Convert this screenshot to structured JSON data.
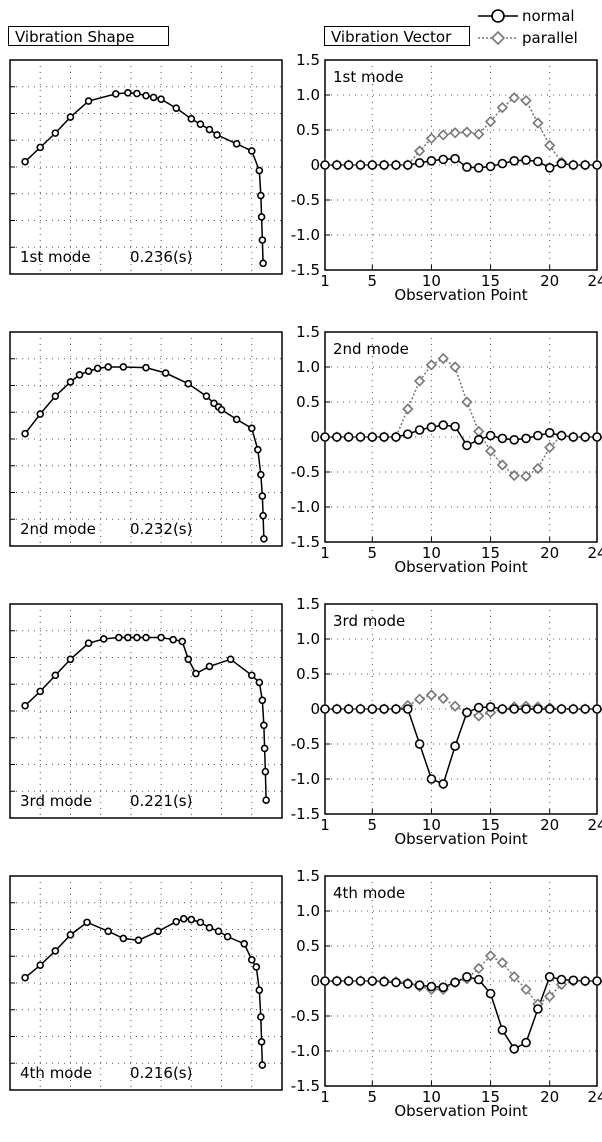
{
  "headers": {
    "shape": "Vibration Shape",
    "vector": "Vibration Vector"
  },
  "legend": {
    "normal": "normal",
    "parallel": "parallel"
  },
  "styles": {
    "normal_color": "#000000",
    "parallel_color": "#777777"
  },
  "chart_data": [
    {
      "type": "line",
      "title": "1st mode",
      "period": "0.236(s)",
      "shape_points": [
        [
          1.0,
          6.15
        ],
        [
          2.0,
          6.55
        ],
        [
          3.0,
          6.95
        ],
        [
          4.0,
          7.4
        ],
        [
          5.2,
          7.85
        ],
        [
          7.0,
          8.05
        ],
        [
          7.8,
          8.08
        ],
        [
          8.4,
          8.06
        ],
        [
          9.0,
          8.0
        ],
        [
          9.5,
          7.95
        ],
        [
          10.0,
          7.9
        ],
        [
          11.0,
          7.65
        ],
        [
          12.0,
          7.35
        ],
        [
          12.6,
          7.2
        ],
        [
          13.2,
          7.05
        ],
        [
          13.7,
          6.9
        ],
        [
          15.0,
          6.65
        ],
        [
          16.0,
          6.45
        ],
        [
          16.5,
          5.9
        ],
        [
          16.6,
          5.2
        ],
        [
          16.65,
          4.6
        ],
        [
          16.7,
          3.95
        ],
        [
          16.75,
          3.3
        ]
      ]
    },
    {
      "type": "line",
      "title": "2nd mode",
      "period": "0.232(s)",
      "shape_points": [
        [
          1.0,
          6.15
        ],
        [
          2.0,
          6.7
        ],
        [
          3.0,
          7.2
        ],
        [
          4.0,
          7.6
        ],
        [
          4.6,
          7.8
        ],
        [
          5.2,
          7.9
        ],
        [
          5.8,
          7.98
        ],
        [
          6.5,
          8.02
        ],
        [
          7.5,
          8.02
        ],
        [
          9.0,
          8.0
        ],
        [
          10.3,
          7.85
        ],
        [
          11.8,
          7.55
        ],
        [
          13.0,
          7.2
        ],
        [
          13.5,
          7.0
        ],
        [
          13.8,
          6.9
        ],
        [
          14.0,
          6.82
        ],
        [
          15.0,
          6.55
        ],
        [
          16.0,
          6.3
        ],
        [
          16.4,
          5.7
        ],
        [
          16.6,
          5.0
        ],
        [
          16.7,
          4.4
        ],
        [
          16.75,
          3.85
        ],
        [
          16.8,
          3.2
        ]
      ]
    },
    {
      "type": "line",
      "title": "3rd mode",
      "period": "0.221(s)",
      "shape_points": [
        [
          1.0,
          6.15
        ],
        [
          2.0,
          6.55
        ],
        [
          3.0,
          7.0
        ],
        [
          4.0,
          7.45
        ],
        [
          5.2,
          7.9
        ],
        [
          6.2,
          8.02
        ],
        [
          7.2,
          8.06
        ],
        [
          7.8,
          8.06
        ],
        [
          8.4,
          8.06
        ],
        [
          9.0,
          8.06
        ],
        [
          10.0,
          8.06
        ],
        [
          10.8,
          8.0
        ],
        [
          11.4,
          7.95
        ],
        [
          11.8,
          7.45
        ],
        [
          12.3,
          7.05
        ],
        [
          13.2,
          7.25
        ],
        [
          14.6,
          7.45
        ],
        [
          16.0,
          7.0
        ],
        [
          16.5,
          6.8
        ],
        [
          16.7,
          6.3
        ],
        [
          16.8,
          5.6
        ],
        [
          16.85,
          4.95
        ],
        [
          16.9,
          4.3
        ],
        [
          16.95,
          3.5
        ]
      ]
    },
    {
      "type": "line",
      "title": "4th mode",
      "period": "0.216(s)",
      "shape_points": [
        [
          1.0,
          6.15
        ],
        [
          2.0,
          6.5
        ],
        [
          3.0,
          6.9
        ],
        [
          4.0,
          7.35
        ],
        [
          5.1,
          7.7
        ],
        [
          6.5,
          7.45
        ],
        [
          7.5,
          7.25
        ],
        [
          8.5,
          7.2
        ],
        [
          9.8,
          7.45
        ],
        [
          11.0,
          7.72
        ],
        [
          11.5,
          7.8
        ],
        [
          12.0,
          7.78
        ],
        [
          12.6,
          7.7
        ],
        [
          13.2,
          7.55
        ],
        [
          13.8,
          7.45
        ],
        [
          14.4,
          7.3
        ],
        [
          15.5,
          7.1
        ],
        [
          16.0,
          6.65
        ],
        [
          16.3,
          6.45
        ],
        [
          16.5,
          5.8
        ],
        [
          16.6,
          5.05
        ],
        [
          16.65,
          4.35
        ],
        [
          16.7,
          3.7
        ]
      ]
    }
  ],
  "vector_charts": [
    {
      "type": "line",
      "title": "1st mode",
      "xlabel": "Observation Point",
      "xlim": [
        1,
        24
      ],
      "ylim": [
        -1.5,
        1.5
      ],
      "x_ticks": [
        "1",
        "5",
        "10",
        "15",
        "20",
        "24"
      ],
      "y_ticks": [
        "1.5",
        "1.0",
        "0.5",
        "0",
        "-0.5",
        "-1.0",
        "-1.5"
      ],
      "x": [
        1,
        2,
        3,
        4,
        5,
        6,
        7,
        8,
        9,
        10,
        11,
        12,
        13,
        14,
        15,
        16,
        17,
        18,
        19,
        20,
        21,
        22,
        23,
        24
      ],
      "series": [
        {
          "name": "normal",
          "values": [
            0,
            0,
            0,
            0,
            0,
            0,
            0,
            0,
            0.03,
            0.06,
            0.08,
            0.09,
            -0.03,
            -0.04,
            -0.02,
            0.02,
            0.06,
            0.07,
            0.05,
            -0.04,
            0.02,
            0,
            0,
            0
          ]
        },
        {
          "name": "parallel",
          "values": [
            0,
            0,
            0,
            0,
            0,
            0,
            0,
            0,
            0.2,
            0.38,
            0.43,
            0.46,
            0.47,
            0.44,
            0.62,
            0.82,
            0.96,
            0.92,
            0.6,
            0.28,
            0.04,
            0,
            0,
            0
          ]
        }
      ]
    },
    {
      "type": "line",
      "title": "2nd mode",
      "xlabel": "Observation Point",
      "xlim": [
        1,
        24
      ],
      "ylim": [
        -1.5,
        1.5
      ],
      "x_ticks": [
        "1",
        "5",
        "10",
        "15",
        "20",
        "24"
      ],
      "y_ticks": [
        "1.5",
        "1.0",
        "0.5",
        "0",
        "-0.5",
        "-1.0",
        "-1.5"
      ],
      "x": [
        1,
        2,
        3,
        4,
        5,
        6,
        7,
        8,
        9,
        10,
        11,
        12,
        13,
        14,
        15,
        16,
        17,
        18,
        19,
        20,
        21,
        22,
        23,
        24
      ],
      "series": [
        {
          "name": "normal",
          "values": [
            0,
            0,
            0,
            0,
            0,
            0,
            0,
            0.04,
            0.1,
            0.14,
            0.17,
            0.15,
            -0.12,
            -0.04,
            0.02,
            -0.02,
            -0.04,
            -0.02,
            0.02,
            0.06,
            0.02,
            0,
            0,
            0
          ]
        },
        {
          "name": "parallel",
          "values": [
            0,
            0,
            0,
            0,
            0,
            0,
            0,
            0.4,
            0.8,
            1.03,
            1.12,
            1.0,
            0.5,
            0.08,
            -0.2,
            -0.4,
            -0.55,
            -0.56,
            -0.45,
            -0.15,
            0.02,
            0,
            0,
            0
          ]
        }
      ]
    },
    {
      "type": "line",
      "title": "3rd mode",
      "xlabel": "Observation Point",
      "xlim": [
        1,
        24
      ],
      "ylim": [
        -1.5,
        1.5
      ],
      "x_ticks": [
        "1",
        "5",
        "10",
        "15",
        "20",
        "24"
      ],
      "y_ticks": [
        "1.5",
        "1.0",
        "0.5",
        "0",
        "-0.5",
        "-1.0",
        "-1.5"
      ],
      "x": [
        1,
        2,
        3,
        4,
        5,
        6,
        7,
        8,
        9,
        10,
        11,
        12,
        13,
        14,
        15,
        16,
        17,
        18,
        19,
        20,
        21,
        22,
        23,
        24
      ],
      "series": [
        {
          "name": "normal",
          "values": [
            0,
            0,
            0,
            0,
            0,
            0,
            0,
            0,
            -0.5,
            -1.0,
            -1.07,
            -0.53,
            -0.05,
            0.02,
            0.03,
            0,
            0,
            0,
            0,
            0,
            0,
            0,
            0,
            0
          ]
        },
        {
          "name": "parallel",
          "values": [
            0,
            0,
            0,
            0,
            0,
            0,
            0,
            0.05,
            0.14,
            0.2,
            0.15,
            0.04,
            -0.05,
            -0.1,
            -0.05,
            0,
            0.03,
            0.04,
            0.03,
            0.02,
            0,
            0,
            0,
            0
          ]
        }
      ]
    },
    {
      "type": "line",
      "title": "4th mode",
      "xlabel": "Observation Point",
      "xlim": [
        1,
        24
      ],
      "ylim": [
        -1.5,
        1.5
      ],
      "x_ticks": [
        "1",
        "5",
        "10",
        "15",
        "20",
        "24"
      ],
      "y_ticks": [
        "1.5",
        "1.0",
        "0.5",
        "0",
        "-0.5",
        "-1.0",
        "-1.5"
      ],
      "x": [
        1,
        2,
        3,
        4,
        5,
        6,
        7,
        8,
        9,
        10,
        11,
        12,
        13,
        14,
        15,
        16,
        17,
        18,
        19,
        20,
        21,
        22,
        23,
        24
      ],
      "series": [
        {
          "name": "normal",
          "values": [
            0,
            0,
            0,
            0,
            0,
            -0.01,
            -0.02,
            -0.04,
            -0.06,
            -0.08,
            -0.09,
            -0.02,
            0.06,
            0.02,
            -0.18,
            -0.7,
            -0.97,
            -0.88,
            -0.4,
            0.06,
            0.02,
            0.01,
            0,
            0
          ]
        },
        {
          "name": "parallel",
          "values": [
            0,
            0,
            0,
            0,
            0,
            0,
            -0.01,
            -0.03,
            -0.08,
            -0.12,
            -0.12,
            -0.02,
            0.03,
            0.18,
            0.36,
            0.26,
            0.06,
            -0.12,
            -0.33,
            -0.22,
            -0.05,
            0,
            0,
            0
          ]
        }
      ]
    }
  ]
}
